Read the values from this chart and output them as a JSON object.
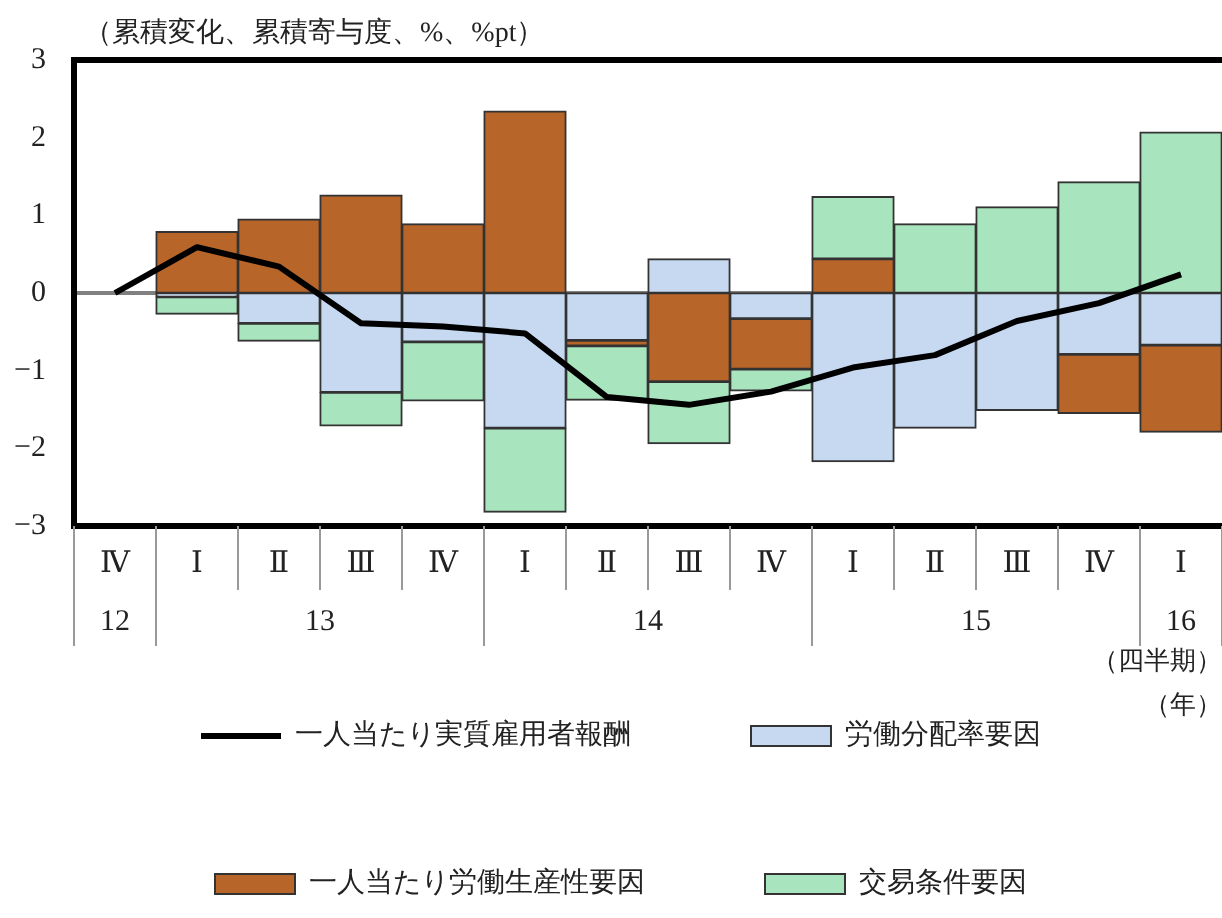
{
  "chart_data": {
    "type": "bar",
    "stacked": true,
    "ylabel": "（累積変化、累積寄与度、%、%pt）",
    "categories": [
      "Ⅳ",
      "Ⅰ",
      "Ⅱ",
      "Ⅲ",
      "Ⅳ",
      "Ⅰ",
      "Ⅱ",
      "Ⅲ",
      "Ⅳ",
      "Ⅰ",
      "Ⅱ",
      "Ⅲ",
      "Ⅳ",
      "Ⅰ"
    ],
    "series": [
      {
        "name": "労働分配率要因",
        "color": "#c6d9f1",
        "values": [
          null,
          -0.05,
          -0.39,
          -1.28,
          -0.63,
          -1.74,
          -0.61,
          0.44,
          -0.33,
          -2.17,
          -1.74,
          -1.51,
          -0.79,
          -0.67
        ]
      },
      {
        "name": "一人当たり労働生産性要因",
        "color": "#b8652a",
        "values": [
          null,
          0.79,
          0.95,
          1.26,
          0.89,
          2.34,
          -0.07,
          -1.14,
          -0.65,
          0.44,
          null,
          null,
          -0.76,
          -1.12
        ]
      },
      {
        "name": "交易条件要因",
        "color": "#a8e4bd",
        "values": [
          null,
          -0.22,
          -0.23,
          -0.43,
          -0.76,
          -1.08,
          -0.7,
          -0.8,
          -0.28,
          0.8,
          0.89,
          1.11,
          1.43,
          2.07
        ]
      },
      {
        "name": "一人当たり実質雇用者報酬",
        "type": "line",
        "color": "#000000",
        "values": [
          0,
          0.59,
          0.34,
          -0.39,
          -0.43,
          -0.52,
          -1.34,
          -1.44,
          -1.27,
          -0.96,
          -0.8,
          -0.36,
          -0.13,
          0.24
        ]
      }
    ],
    "ylim": [
      -3,
      3
    ],
    "yticks": [
      -3,
      -2,
      -1,
      0,
      1,
      2,
      3
    ],
    "grid": false,
    "legend": "bottom",
    "marker": "none",
    "ref_lines": [
      {
        "axis": "y",
        "value": 0,
        "color": "#808080"
      }
    ],
    "annotations": [
      "12",
      "13",
      "14",
      "15",
      "16",
      "（四半期）",
      "（年）"
    ]
  }
}
